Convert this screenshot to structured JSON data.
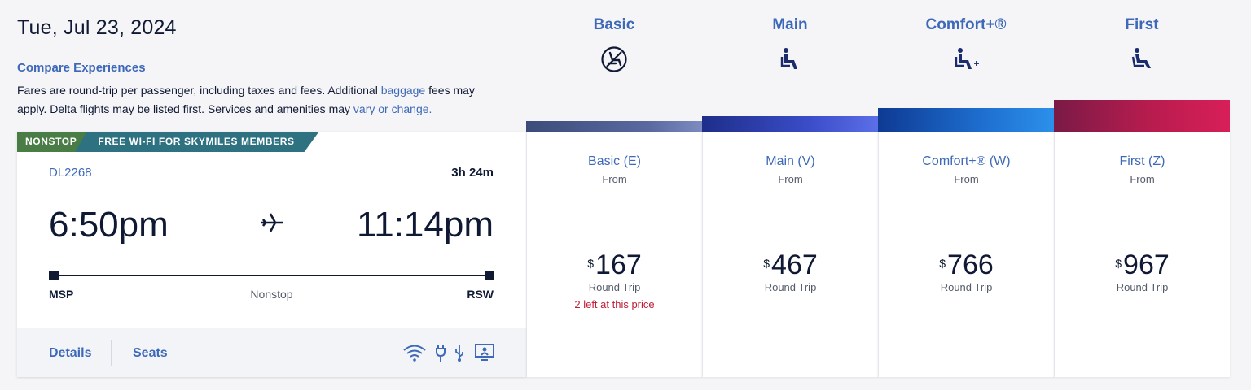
{
  "header": {
    "date": "Tue, Jul 23, 2024",
    "compare_link": "Compare Experiences",
    "note_part1": "Fares are round-trip per passenger, including taxes and fees. Additional ",
    "note_link1": "baggage",
    "note_part2": " fees may apply. Delta flights may be listed first. Services and amenities may ",
    "note_link2": "vary or change."
  },
  "cabins": [
    {
      "name": "Basic",
      "icon": "no-seat-selection-icon"
    },
    {
      "name": "Main",
      "icon": "seat-icon"
    },
    {
      "name": "Comfort+®",
      "icon": "seat-plus-icon"
    },
    {
      "name": "First",
      "icon": "recliner-seat-icon"
    }
  ],
  "flight": {
    "tag_nonstop": "NONSTOP",
    "tag_wifi": "FREE WI-FI FOR SKYMILES MEMBERS",
    "flight_number": "DL2268",
    "duration": "3h 24m",
    "departure_time": "6:50pm",
    "arrival_time": "11:14pm",
    "origin": "MSP",
    "destination": "RSW",
    "stops": "Nonstop",
    "details_label": "Details",
    "seats_label": "Seats",
    "amenities": [
      "wifi-icon",
      "power-plug-icon",
      "usb-icon",
      "entertainment-screen-icon"
    ]
  },
  "fares": [
    {
      "class": "Basic (E)",
      "from": "From",
      "currency": "$",
      "price": "167",
      "trip": "Round Trip",
      "availability": "2 left at this price"
    },
    {
      "class": "Main (V)",
      "from": "From",
      "currency": "$",
      "price": "467",
      "trip": "Round Trip",
      "availability": ""
    },
    {
      "class": "Comfort+® (W)",
      "from": "From",
      "currency": "$",
      "price": "766",
      "trip": "Round Trip",
      "availability": ""
    },
    {
      "class": "First (Z)",
      "from": "From",
      "currency": "$",
      "price": "967",
      "trip": "Round Trip",
      "availability": ""
    }
  ],
  "colors": {
    "link": "#3e69b8",
    "text": "#0f1934",
    "alert": "#c01d36"
  }
}
